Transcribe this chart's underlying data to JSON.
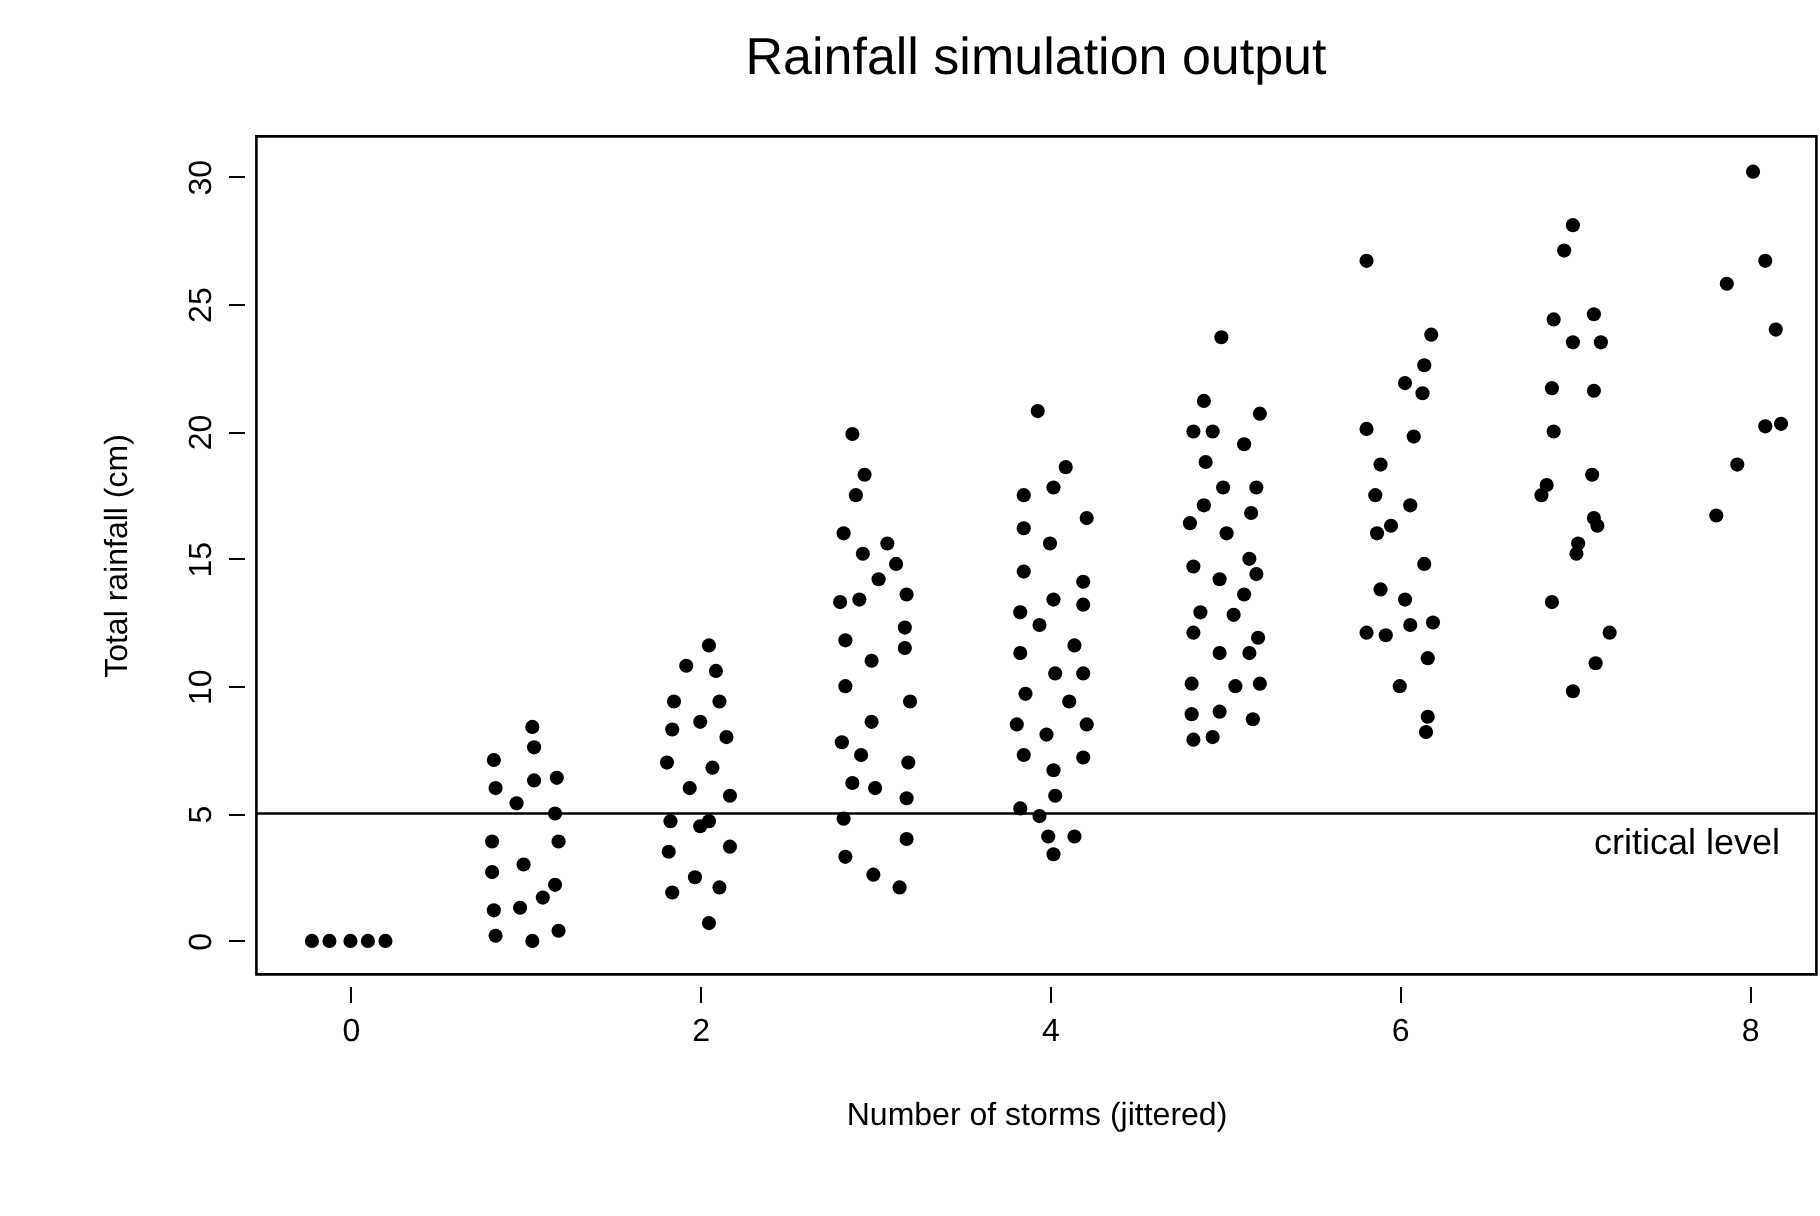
{
  "chart_data": {
    "type": "scatter",
    "title": "Rainfall simulation output",
    "xlabel": "Number of storms (jittered)",
    "ylabel": "Total rainfall (cm)",
    "xlim": [
      -0.54,
      8.38
    ],
    "xticks": [
      0,
      2,
      4,
      6,
      8
    ],
    "ylim": [
      -1.3,
      31.6
    ],
    "yticks": [
      0,
      5,
      10,
      15,
      20,
      25,
      30
    ],
    "marker": "circle",
    "ref_lines": [
      {
        "axis": "y",
        "value": 5,
        "label": "critical level",
        "color": "#000000"
      }
    ],
    "series": [
      {
        "color": "#000000",
        "x": [
          -0.22,
          -0.12,
          0,
          0.1,
          0.2,
          1.04,
          1.05,
          0.82,
          1.18,
          0.83,
          1.05,
          0.95,
          1.17,
          0.81,
          1.19,
          0.99,
          0.81,
          1.17,
          0.82,
          0.97,
          1.19,
          0.83,
          1.04,
          1.1,
          2.05,
          1.92,
          2.09,
          1.85,
          2.11,
          2.0,
          1.84,
          2.15,
          1.81,
          2.07,
          1.94,
          2.17,
          1.83,
          2.05,
          2.17,
          1.82,
          1.97,
          1.84,
          2.11,
          2.05,
          2.0,
          2.87,
          2.94,
          2.89,
          2.82,
          3.07,
          2.93,
          3.12,
          3.02,
          2.8,
          3.18,
          2.91,
          3.17,
          2.83,
          2.98,
          3.17,
          2.83,
          3.2,
          2.98,
          2.81,
          3.19,
          2.87,
          3.18,
          2.82,
          3.18,
          2.83,
          2.99,
          3.14,
          3.0,
          2.92,
          3.93,
          4.09,
          3.85,
          4.02,
          4.21,
          3.85,
          4.0,
          3.85,
          4.19,
          4.02,
          3.83,
          4.19,
          3.94,
          4.14,
          3.83,
          4.03,
          4.19,
          3.86,
          4.11,
          3.81,
          4.21,
          3.98,
          3.85,
          4.19,
          4.02,
          3.83,
          4.03,
          3.94,
          3.99,
          4.14,
          4.02,
          4.98,
          4.88,
          5.2,
          4.82,
          4.93,
          5.11,
          4.89,
          5.18,
          4.99,
          4.88,
          5.15,
          4.8,
          5.01,
          5.14,
          4.82,
          4.97,
          5.18,
          5.11,
          4.86,
          5.05,
          4.82,
          5.19,
          4.97,
          5.14,
          4.81,
          5.06,
          5.2,
          4.81,
          4.97,
          5.16,
          4.82,
          4.93,
          5.81,
          6.18,
          6.14,
          6.03,
          6.13,
          5.81,
          6.08,
          5.89,
          5.86,
          6.06,
          5.95,
          5.87,
          6.14,
          5.89,
          6.03,
          6.19,
          5.81,
          5.92,
          6.06,
          6.16,
          6.0,
          6.16,
          6.15,
          6.99,
          6.94,
          6.88,
          7.11,
          6.99,
          7.15,
          6.87,
          7.11,
          6.88,
          7.1,
          6.84,
          6.81,
          7.11,
          7.13,
          7.02,
          7.01,
          6.87,
          7.2,
          7.12,
          6.99,
          8.02,
          8.09,
          7.87,
          8.15,
          8.09,
          8.18,
          7.93,
          7.81
        ],
        "values": [
          0,
          0,
          0,
          0,
          0,
          8.4,
          7.6,
          7.1,
          6.4,
          6.0,
          6.3,
          5.4,
          5.0,
          3.9,
          3.9,
          3.0,
          2.7,
          2.2,
          1.2,
          1.3,
          0.4,
          0.2,
          0.0,
          1.7,
          11.6,
          10.8,
          10.6,
          9.4,
          9.4,
          8.6,
          8.3,
          8.0,
          7.0,
          6.8,
          6.0,
          5.7,
          4.7,
          4.7,
          3.7,
          3.5,
          2.5,
          1.9,
          2.1,
          0.7,
          4.5,
          19.9,
          18.3,
          17.5,
          16.0,
          15.6,
          15.2,
          14.8,
          14.2,
          13.3,
          13.6,
          13.4,
          12.3,
          11.8,
          11.0,
          11.5,
          10.0,
          9.4,
          8.6,
          7.8,
          7.0,
          6.2,
          5.6,
          4.8,
          4.0,
          3.3,
          2.6,
          2.1,
          6.0,
          7.3,
          20.8,
          18.6,
          17.5,
          17.8,
          16.6,
          16.2,
          15.6,
          14.5,
          14.1,
          13.4,
          12.9,
          13.2,
          12.4,
          11.6,
          11.3,
          10.5,
          10.5,
          9.7,
          9.4,
          8.5,
          8.5,
          8.1,
          7.3,
          7.2,
          6.7,
          5.2,
          5.7,
          4.9,
          4.1,
          4.1,
          3.4,
          23.7,
          21.2,
          20.7,
          20.0,
          20.0,
          19.5,
          18.8,
          17.8,
          17.8,
          17.1,
          16.8,
          16.4,
          16.0,
          15.0,
          14.7,
          14.2,
          14.4,
          13.6,
          12.9,
          12.8,
          12.1,
          11.9,
          11.3,
          11.3,
          10.1,
          10.0,
          10.1,
          8.9,
          9.0,
          8.7,
          7.9,
          8.0,
          26.7,
          23.8,
          22.6,
          21.9,
          21.5,
          20.1,
          19.8,
          18.7,
          17.5,
          17.1,
          16.3,
          16.0,
          14.8,
          13.8,
          13.4,
          12.5,
          12.1,
          12.0,
          12.4,
          11.1,
          10.0,
          8.8,
          8.2,
          28.1,
          27.1,
          24.4,
          24.6,
          23.5,
          23.5,
          21.7,
          21.6,
          20.0,
          18.3,
          17.9,
          17.5,
          16.6,
          16.3,
          15.6,
          15.2,
          13.3,
          12.1,
          10.9,
          9.8,
          30.2,
          26.7,
          25.8,
          24.0,
          20.2,
          20.3,
          18.7,
          16.7
        ]
      }
    ]
  }
}
